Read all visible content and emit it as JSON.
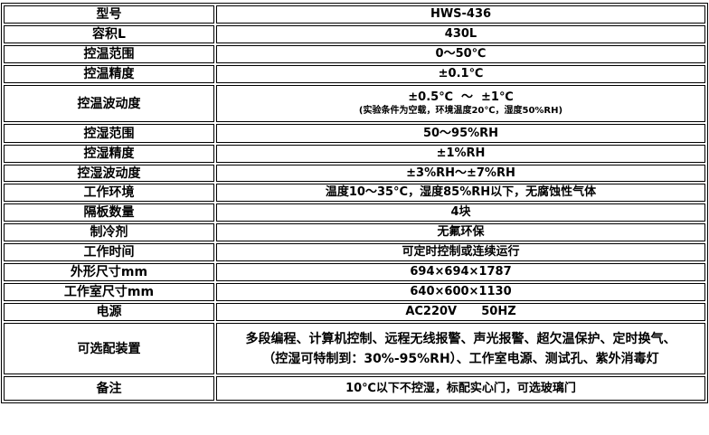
{
  "rows": [
    {
      "label": "型号",
      "value": "HWS-436"
    },
    {
      "label": "容积L",
      "value": "430L"
    },
    {
      "label": "控温范围",
      "value": "0～50℃"
    },
    {
      "label": "控温精度",
      "value": "±0.1℃"
    },
    {
      "label": "控温波动度",
      "value": "±0.5℃  ～  ±1℃",
      "note": "(实验条件为空载，环境温度20℃，湿度50%RH)"
    },
    {
      "label": "控湿范围",
      "value": "50～95%RH"
    },
    {
      "label": "控湿精度",
      "value": "±1%RH"
    },
    {
      "label": "控湿波动度",
      "value": "±3%RH～±7%RH"
    },
    {
      "label": "工作环境",
      "value": "温度10～35°C，湿度85%RH以下，无腐蚀性气体"
    },
    {
      "label": "隔板数量",
      "value": "4块"
    },
    {
      "label": "制冷剂",
      "value": "无氟环保"
    },
    {
      "label": "工作时间",
      "value": "可定时控制或连续运行"
    },
    {
      "label": "外形尺寸mm",
      "value": "694×694×1787"
    },
    {
      "label": "工作室尺寸mm",
      "value": "640×600×1130"
    },
    {
      "label": "电源",
      "value": "AC220V      50HZ"
    },
    {
      "label": "可选配装置",
      "value": "多段编程、计算机控制、远程无线报警、声光报警、超欠温保护、定时换气、（控湿可特制到：30%-95%RH）、工作室电源、测试孔、紫外消毒灯"
    },
    {
      "label": "备注",
      "value": "10℃以下不控湿，标配实心门，可选玻璃门"
    }
  ]
}
